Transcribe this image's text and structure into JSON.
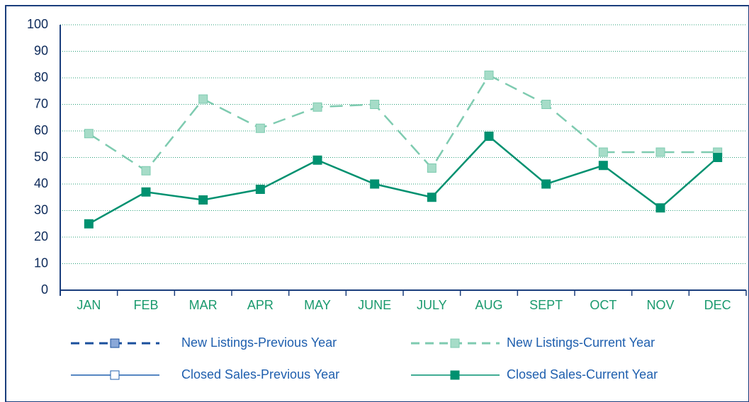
{
  "chart_data": {
    "type": "line",
    "categories": [
      "JAN",
      "FEB",
      "MAR",
      "APR",
      "MAY",
      "JUNE",
      "JULY",
      "AUG",
      "SEPT",
      "OCT",
      "NOV",
      "DEC"
    ],
    "series": [
      {
        "name": "New Listings-Previous Year",
        "color": "#1a4f9c",
        "marker_fill": "#8aa8d8",
        "dash": true,
        "values": [
          null,
          null,
          null,
          null,
          null,
          null,
          null,
          null,
          null,
          null,
          null,
          null
        ]
      },
      {
        "name": "New Listings-Current Year",
        "color": "#7ecbb0",
        "marker_fill": "#a6dcc8",
        "dash": true,
        "values": [
          59,
          45,
          72,
          61,
          69,
          70,
          46,
          81,
          70,
          52,
          52,
          52
        ]
      },
      {
        "name": "Closed Sales-Previous Year",
        "color": "#1f5fae",
        "marker_fill": "#ffffff",
        "dash": false,
        "values": [
          null,
          null,
          null,
          null,
          null,
          null,
          null,
          null,
          null,
          null,
          null,
          null
        ]
      },
      {
        "name": "Closed Sales-Current Year",
        "color": "#009170",
        "marker_fill": "#009170",
        "dash": false,
        "values": [
          25,
          37,
          34,
          38,
          49,
          40,
          35,
          58,
          40,
          47,
          31,
          50
        ]
      }
    ],
    "ylim": [
      0,
      100
    ],
    "yticks": [
      0,
      10,
      20,
      30,
      40,
      50,
      60,
      70,
      80,
      90,
      100
    ],
    "grid": true
  }
}
